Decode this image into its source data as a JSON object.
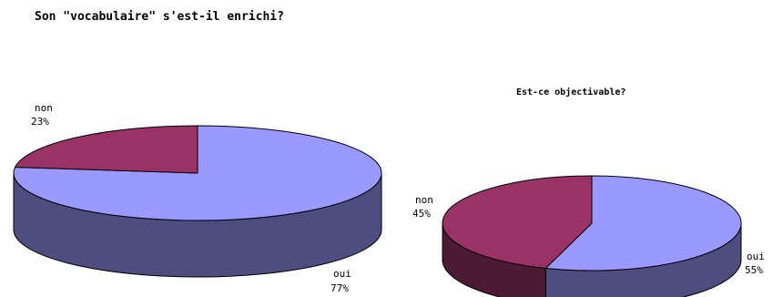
{
  "chart_data": [
    {
      "type": "pie",
      "title": "Son \"vocabulaire\" s'est-il enrichi?",
      "slices": [
        {
          "label": "oui",
          "pct_text": "77%",
          "value": 77,
          "color": "#9999ff"
        },
        {
          "label": "non",
          "pct_text": "23%",
          "value": 23,
          "color": "#993366"
        }
      ],
      "three_d": true
    },
    {
      "type": "pie",
      "title": "Est-ce objectivable?",
      "slices": [
        {
          "label": "oui",
          "pct_text": "55%",
          "value": 55,
          "color": "#9999ff"
        },
        {
          "label": "non",
          "pct_text": "45%",
          "value": 45,
          "color": "#993366"
        }
      ],
      "three_d": true
    }
  ]
}
